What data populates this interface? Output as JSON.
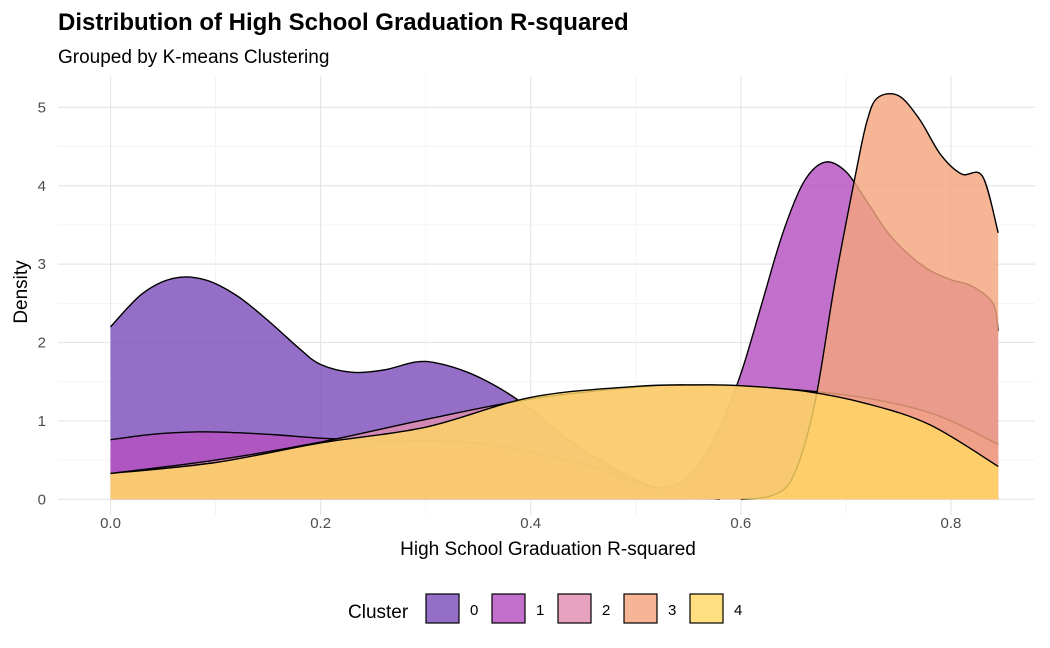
{
  "chart_data": {
    "type": "area",
    "title": "Distribution of High School Graduation R-squared",
    "subtitle": "Grouped by K-means Clustering",
    "xlabel": "High School Graduation R-squared",
    "ylabel": "Density",
    "xlim": [
      -0.05,
      0.88
    ],
    "ylim": [
      -0.2,
      5.4
    ],
    "x_ticks": [
      {
        "value": 0.0,
        "label": "0.0"
      },
      {
        "value": 0.2,
        "label": "0.2"
      },
      {
        "value": 0.4,
        "label": "0.4"
      },
      {
        "value": 0.6,
        "label": "0.6"
      },
      {
        "value": 0.8,
        "label": "0.8"
      }
    ],
    "y_ticks": [
      {
        "value": 0,
        "label": "0"
      },
      {
        "value": 1,
        "label": "1"
      },
      {
        "value": 2,
        "label": "2"
      },
      {
        "value": 3,
        "label": "3"
      },
      {
        "value": 4,
        "label": "4"
      },
      {
        "value": 5,
        "label": "5"
      }
    ],
    "grid": true,
    "legend": {
      "title": "Cluster",
      "position": "bottom"
    },
    "series": [
      {
        "name": "0",
        "color": "#7e4fbb",
        "points": [
          [
            0.0,
            2.2
          ],
          [
            0.03,
            2.62
          ],
          [
            0.06,
            2.82
          ],
          [
            0.09,
            2.8
          ],
          [
            0.12,
            2.6
          ],
          [
            0.15,
            2.28
          ],
          [
            0.18,
            1.92
          ],
          [
            0.2,
            1.72
          ],
          [
            0.23,
            1.62
          ],
          [
            0.26,
            1.65
          ],
          [
            0.29,
            1.75
          ],
          [
            0.31,
            1.74
          ],
          [
            0.34,
            1.62
          ],
          [
            0.37,
            1.42
          ],
          [
            0.4,
            1.15
          ],
          [
            0.43,
            0.82
          ],
          [
            0.46,
            0.55
          ],
          [
            0.49,
            0.32
          ],
          [
            0.52,
            0.14
          ],
          [
            0.55,
            0.04
          ],
          [
            0.58,
            0.0
          ]
        ]
      },
      {
        "name": "1",
        "color": "#b450c1",
        "points": [
          [
            0.0,
            0.76
          ],
          [
            0.04,
            0.83
          ],
          [
            0.08,
            0.86
          ],
          [
            0.12,
            0.85
          ],
          [
            0.16,
            0.82
          ],
          [
            0.2,
            0.78
          ],
          [
            0.24,
            0.76
          ],
          [
            0.28,
            0.75
          ],
          [
            0.32,
            0.74
          ],
          [
            0.36,
            0.7
          ],
          [
            0.4,
            0.6
          ],
          [
            0.44,
            0.48
          ],
          [
            0.48,
            0.32
          ],
          [
            0.5,
            0.22
          ],
          [
            0.52,
            0.15
          ],
          [
            0.54,
            0.2
          ],
          [
            0.56,
            0.45
          ],
          [
            0.58,
            0.92
          ],
          [
            0.6,
            1.6
          ],
          [
            0.62,
            2.5
          ],
          [
            0.64,
            3.4
          ],
          [
            0.66,
            4.05
          ],
          [
            0.68,
            4.3
          ],
          [
            0.7,
            4.18
          ],
          [
            0.72,
            3.8
          ],
          [
            0.74,
            3.4
          ],
          [
            0.76,
            3.12
          ],
          [
            0.78,
            2.92
          ],
          [
            0.8,
            2.8
          ],
          [
            0.82,
            2.72
          ],
          [
            0.84,
            2.5
          ],
          [
            0.845,
            2.15
          ]
        ]
      },
      {
        "name": "2",
        "color": "#e08db0",
        "points": [
          [
            0.0,
            0.33
          ],
          [
            0.1,
            0.5
          ],
          [
            0.2,
            0.73
          ],
          [
            0.3,
            1.02
          ],
          [
            0.4,
            1.28
          ],
          [
            0.5,
            1.43
          ],
          [
            0.56,
            1.46
          ],
          [
            0.62,
            1.43
          ],
          [
            0.7,
            1.33
          ],
          [
            0.76,
            1.18
          ],
          [
            0.8,
            1.0
          ],
          [
            0.845,
            0.7
          ]
        ]
      },
      {
        "name": "3",
        "color": "#f4a57e",
        "points": [
          [
            0.6,
            0.0
          ],
          [
            0.63,
            0.05
          ],
          [
            0.65,
            0.3
          ],
          [
            0.67,
            1.2
          ],
          [
            0.69,
            2.8
          ],
          [
            0.71,
            4.2
          ],
          [
            0.72,
            4.82
          ],
          [
            0.73,
            5.12
          ],
          [
            0.75,
            5.15
          ],
          [
            0.77,
            4.85
          ],
          [
            0.79,
            4.4
          ],
          [
            0.81,
            4.15
          ],
          [
            0.83,
            4.12
          ],
          [
            0.845,
            3.4
          ]
        ]
      },
      {
        "name": "4",
        "color": "#ffd863",
        "points": [
          [
            0.0,
            0.33
          ],
          [
            0.1,
            0.47
          ],
          [
            0.2,
            0.72
          ],
          [
            0.3,
            0.92
          ],
          [
            0.4,
            1.3
          ],
          [
            0.5,
            1.44
          ],
          [
            0.56,
            1.46
          ],
          [
            0.6,
            1.45
          ],
          [
            0.66,
            1.38
          ],
          [
            0.72,
            1.22
          ],
          [
            0.78,
            0.95
          ],
          [
            0.845,
            0.42
          ]
        ]
      }
    ]
  }
}
